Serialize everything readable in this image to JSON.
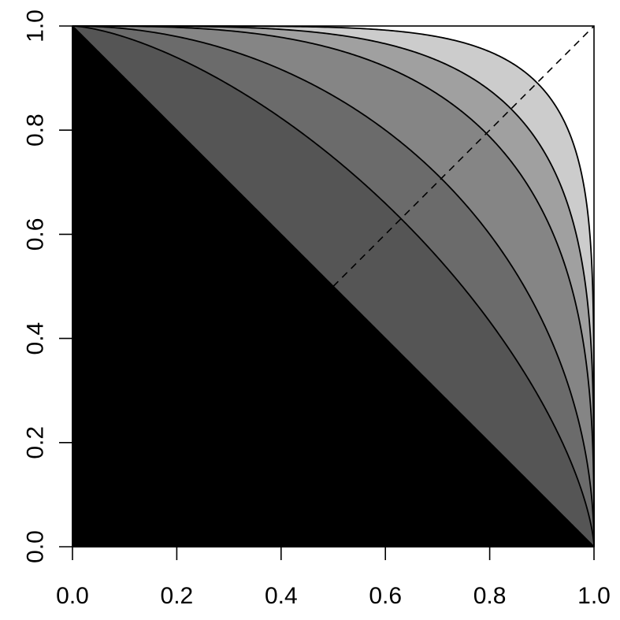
{
  "chart_data": {
    "type": "area",
    "title": "",
    "xlabel": "",
    "ylabel": "",
    "xlim": [
      0,
      1
    ],
    "ylim": [
      0,
      1
    ],
    "grid": false,
    "legend": "none",
    "x_ticks": [
      "0.0",
      "0.2",
      "0.4",
      "0.6",
      "0.8",
      "1.0"
    ],
    "y_ticks": [
      "0.0",
      "0.2",
      "0.4",
      "0.6",
      "0.8",
      "1.0"
    ],
    "x_tick_values": [
      0,
      0.2,
      0.4,
      0.6,
      0.8,
      1.0
    ],
    "y_tick_values": [
      0,
      0.2,
      0.4,
      0.6,
      0.8,
      1.0
    ],
    "curve_family": "superellipse x^p + y^p = 1",
    "series": [
      {
        "exponent": 1,
        "fill": "#000000",
        "crosses_diagonal_at": 0.5
      },
      {
        "exponent": 1.5,
        "fill": "#555555",
        "crosses_diagonal_at": 0.63
      },
      {
        "exponent": 2,
        "fill": "#6b6b6b",
        "crosses_diagonal_at": 0.71
      },
      {
        "exponent": 3,
        "fill": "#858585",
        "crosses_diagonal_at": 0.79
      },
      {
        "exponent": 4,
        "fill": "#a0a0a0",
        "crosses_diagonal_at": 0.84
      },
      {
        "exponent": 6,
        "fill": "#cccccc",
        "crosses_diagonal_at": 0.89
      }
    ],
    "reference_line": {
      "style": "dashed",
      "from": [
        0.5,
        0.5
      ],
      "to": [
        1,
        1
      ]
    }
  }
}
